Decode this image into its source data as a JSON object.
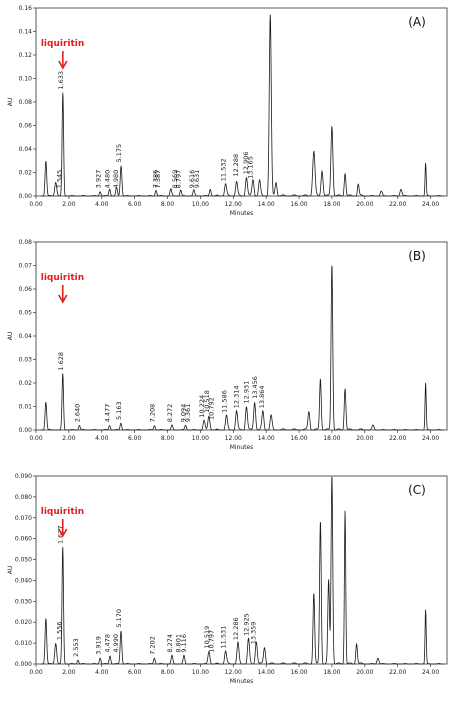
{
  "chart_data": [
    {
      "type": "line",
      "panel_label": "(A)",
      "xlabel": "Minutes",
      "ylabel": "AU",
      "xlim": [
        0,
        25
      ],
      "ylim": [
        0,
        0.16
      ],
      "x_ticks": [
        "0.00",
        "2.00",
        "4.00",
        "6.00",
        "8.00",
        "10.00",
        "12.00",
        "14.00",
        "16.00",
        "18.00",
        "20.00",
        "22.00",
        "24.00"
      ],
      "y_ticks": [
        "0.00",
        "0.02",
        "0.04",
        "0.06",
        "0.08",
        "0.10",
        "0.12",
        "0.14",
        "0.16"
      ],
      "annotation": {
        "text": "liquiritin",
        "x": 1.633
      },
      "series": [
        {
          "peaks": [
            {
              "x": 0.6,
              "y": 0.03,
              "w": 0.05
            },
            {
              "x": 1.2,
              "y": 0.012,
              "w": 0.06
            },
            {
              "x": 1.633,
              "y": 0.088,
              "w": 0.045
            },
            {
              "x": 3.9,
              "y": 0.004,
              "w": 0.05
            },
            {
              "x": 4.48,
              "y": 0.006,
              "w": 0.05
            },
            {
              "x": 4.9,
              "y": 0.007,
              "w": 0.05
            },
            {
              "x": 5.175,
              "y": 0.026,
              "w": 0.05
            },
            {
              "x": 7.3,
              "y": 0.005,
              "w": 0.05
            },
            {
              "x": 8.2,
              "y": 0.006,
              "w": 0.05
            },
            {
              "x": 8.8,
              "y": 0.005,
              "w": 0.05
            },
            {
              "x": 9.6,
              "y": 0.005,
              "w": 0.05
            },
            {
              "x": 10.6,
              "y": 0.006,
              "w": 0.05
            },
            {
              "x": 11.53,
              "y": 0.01,
              "w": 0.06
            },
            {
              "x": 12.2,
              "y": 0.012,
              "w": 0.06
            },
            {
              "x": 12.8,
              "y": 0.016,
              "w": 0.06
            },
            {
              "x": 13.2,
              "y": 0.014,
              "w": 0.06
            },
            {
              "x": 13.6,
              "y": 0.013,
              "w": 0.06
            },
            {
              "x": 14.25,
              "y": 0.154,
              "w": 0.06
            },
            {
              "x": 14.6,
              "y": 0.012,
              "w": 0.06
            },
            {
              "x": 16.9,
              "y": 0.038,
              "w": 0.07
            },
            {
              "x": 17.4,
              "y": 0.022,
              "w": 0.06
            },
            {
              "x": 18.0,
              "y": 0.06,
              "w": 0.06
            },
            {
              "x": 18.8,
              "y": 0.02,
              "w": 0.05
            },
            {
              "x": 19.6,
              "y": 0.01,
              "w": 0.05
            },
            {
              "x": 21.0,
              "y": 0.004,
              "w": 0.06
            },
            {
              "x": 22.2,
              "y": 0.006,
              "w": 0.06
            },
            {
              "x": 23.7,
              "y": 0.028,
              "w": 0.035
            }
          ]
        }
      ],
      "peak_labels": [
        {
          "text": "1.633",
          "x": 1.633,
          "y": 0.088
        },
        {
          "text": "1.545",
          "x": 1.545,
          "y": 0.004
        },
        {
          "text": "3.927",
          "x": 3.927,
          "y": 0.004
        },
        {
          "text": "4.480",
          "x": 4.48,
          "y": 0.004
        },
        {
          "text": "4.980",
          "x": 4.98,
          "y": 0.004
        },
        {
          "text": "5.175",
          "x": 5.175,
          "y": 0.026
        },
        {
          "text": "7.386",
          "x": 7.386,
          "y": 0.004
        },
        {
          "text": "7.387",
          "x": 7.55,
          "y": 0.004
        },
        {
          "text": "8.569",
          "x": 8.569,
          "y": 0.004
        },
        {
          "text": "8.797",
          "x": 8.797,
          "y": 0.004
        },
        {
          "text": "9.616",
          "x": 9.616,
          "y": 0.004
        },
        {
          "text": "9.631",
          "x": 9.9,
          "y": 0.004
        },
        {
          "text": "11.532",
          "x": 11.532,
          "y": 0.01
        },
        {
          "text": "12.288",
          "x": 12.288,
          "y": 0.014
        },
        {
          "text": "12.906",
          "x": 12.906,
          "y": 0.016
        },
        {
          "text": "13.165",
          "x": 13.165,
          "y": 0.012
        }
      ]
    },
    {
      "type": "line",
      "panel_label": "(B)",
      "xlabel": "Minutes",
      "ylabel": "AU",
      "xlim": [
        0,
        25
      ],
      "ylim": [
        0,
        0.08
      ],
      "x_ticks": [
        "0.00",
        "2.00",
        "4.00",
        "6.00",
        "8.00",
        "10.00",
        "12.00",
        "14.00",
        "16.00",
        "18.00",
        "20.00",
        "22.00",
        "24.00"
      ],
      "y_ticks": [
        "0.00",
        "0.01",
        "0.02",
        "0.03",
        "0.04",
        "0.05",
        "0.06",
        "0.07",
        "0.08"
      ],
      "annotation": {
        "text": "liquiritin",
        "x": 1.628
      },
      "series": [
        {
          "peaks": [
            {
              "x": 0.6,
              "y": 0.012,
              "w": 0.05
            },
            {
              "x": 1.628,
              "y": 0.024,
              "w": 0.045
            },
            {
              "x": 2.64,
              "y": 0.002,
              "w": 0.05
            },
            {
              "x": 4.477,
              "y": 0.002,
              "w": 0.05
            },
            {
              "x": 5.163,
              "y": 0.003,
              "w": 0.05
            },
            {
              "x": 7.208,
              "y": 0.002,
              "w": 0.05
            },
            {
              "x": 8.272,
              "y": 0.002,
              "w": 0.05
            },
            {
              "x": 9.1,
              "y": 0.002,
              "w": 0.05
            },
            {
              "x": 10.224,
              "y": 0.004,
              "w": 0.06
            },
            {
              "x": 10.518,
              "y": 0.006,
              "w": 0.06
            },
            {
              "x": 11.586,
              "y": 0.006,
              "w": 0.06
            },
            {
              "x": 12.2,
              "y": 0.008,
              "w": 0.06
            },
            {
              "x": 12.8,
              "y": 0.01,
              "w": 0.06
            },
            {
              "x": 13.3,
              "y": 0.012,
              "w": 0.06
            },
            {
              "x": 13.8,
              "y": 0.008,
              "w": 0.06
            },
            {
              "x": 14.3,
              "y": 0.006,
              "w": 0.06
            },
            {
              "x": 16.6,
              "y": 0.008,
              "w": 0.06
            },
            {
              "x": 17.3,
              "y": 0.022,
              "w": 0.05
            },
            {
              "x": 18.0,
              "y": 0.071,
              "w": 0.05
            },
            {
              "x": 18.8,
              "y": 0.018,
              "w": 0.05
            },
            {
              "x": 20.5,
              "y": 0.002,
              "w": 0.06
            },
            {
              "x": 23.7,
              "y": 0.02,
              "w": 0.035
            }
          ]
        }
      ],
      "peak_labels": [
        {
          "text": "1.628",
          "x": 1.628,
          "y": 0.024
        },
        {
          "text": "2.640",
          "x": 2.64,
          "y": 0.002
        },
        {
          "text": "4.477",
          "x": 4.477,
          "y": 0.002
        },
        {
          "text": "5.163",
          "x": 5.163,
          "y": 0.003
        },
        {
          "text": "7.208",
          "x": 7.208,
          "y": 0.002
        },
        {
          "text": "8.272",
          "x": 8.272,
          "y": 0.002
        },
        {
          "text": "9.094",
          "x": 9.094,
          "y": 0.002
        },
        {
          "text": "9.361",
          "x": 9.361,
          "y": 0.002
        },
        {
          "text": "10.224",
          "x": 10.224,
          "y": 0.004
        },
        {
          "text": "10.518",
          "x": 10.518,
          "y": 0.006
        },
        {
          "text": "10.792",
          "x": 10.792,
          "y": 0.003
        },
        {
          "text": "11.586",
          "x": 11.586,
          "y": 0.006
        },
        {
          "text": "12.314",
          "x": 12.314,
          "y": 0.008
        },
        {
          "text": "12.931",
          "x": 12.931,
          "y": 0.01
        },
        {
          "text": "13.456",
          "x": 13.456,
          "y": 0.012
        },
        {
          "text": "13.864",
          "x": 13.864,
          "y": 0.008
        }
      ]
    },
    {
      "type": "line",
      "panel_label": "(C)",
      "xlabel": "Minutes",
      "ylabel": "AU",
      "xlim": [
        0,
        25
      ],
      "ylim": [
        0,
        0.09
      ],
      "x_ticks": [
        "0.00",
        "2.00",
        "4.00",
        "6.00",
        "8.00",
        "10.00",
        "12.00",
        "14.00",
        "16.00",
        "18.00",
        "20.00",
        "22.00",
        "24.00"
      ],
      "y_ticks": [
        "0.000",
        "0.010",
        "0.020",
        "0.030",
        "0.040",
        "0.050",
        "0.060",
        "0.070",
        "0.080",
        "0.090"
      ],
      "annotation": {
        "text": "liquiritin",
        "x": 1.627
      },
      "series": [
        {
          "peaks": [
            {
              "x": 0.6,
              "y": 0.022,
              "w": 0.05
            },
            {
              "x": 1.2,
              "y": 0.01,
              "w": 0.06
            },
            {
              "x": 1.627,
              "y": 0.056,
              "w": 0.045
            },
            {
              "x": 2.553,
              "y": 0.002,
              "w": 0.05
            },
            {
              "x": 3.9,
              "y": 0.003,
              "w": 0.05
            },
            {
              "x": 4.5,
              "y": 0.004,
              "w": 0.05
            },
            {
              "x": 5.17,
              "y": 0.016,
              "w": 0.05
            },
            {
              "x": 7.202,
              "y": 0.003,
              "w": 0.05
            },
            {
              "x": 8.274,
              "y": 0.004,
              "w": 0.05
            },
            {
              "x": 9.0,
              "y": 0.004,
              "w": 0.05
            },
            {
              "x": 10.519,
              "y": 0.006,
              "w": 0.06
            },
            {
              "x": 11.531,
              "y": 0.006,
              "w": 0.06
            },
            {
              "x": 12.286,
              "y": 0.01,
              "w": 0.06
            },
            {
              "x": 12.925,
              "y": 0.012,
              "w": 0.06
            },
            {
              "x": 13.4,
              "y": 0.011,
              "w": 0.06
            },
            {
              "x": 13.9,
              "y": 0.008,
              "w": 0.06
            },
            {
              "x": 16.9,
              "y": 0.034,
              "w": 0.05
            },
            {
              "x": 17.3,
              "y": 0.069,
              "w": 0.05
            },
            {
              "x": 17.8,
              "y": 0.04,
              "w": 0.05
            },
            {
              "x": 18.0,
              "y": 0.091,
              "w": 0.05
            },
            {
              "x": 18.8,
              "y": 0.074,
              "w": 0.04
            },
            {
              "x": 19.5,
              "y": 0.01,
              "w": 0.05
            },
            {
              "x": 20.8,
              "y": 0.003,
              "w": 0.06
            },
            {
              "x": 23.7,
              "y": 0.026,
              "w": 0.035
            }
          ]
        }
      ],
      "peak_labels": [
        {
          "text": "1.627",
          "x": 1.627,
          "y": 0.056
        },
        {
          "text": "1.556",
          "x": 1.556,
          "y": 0.01
        },
        {
          "text": "2.553",
          "x": 2.553,
          "y": 0.002
        },
        {
          "text": "3.919",
          "x": 3.919,
          "y": 0.003
        },
        {
          "text": "4.478",
          "x": 4.478,
          "y": 0.004
        },
        {
          "text": "4.990",
          "x": 4.99,
          "y": 0.004
        },
        {
          "text": "5.170",
          "x": 5.17,
          "y": 0.016
        },
        {
          "text": "7.202",
          "x": 7.202,
          "y": 0.003
        },
        {
          "text": "8.274",
          "x": 8.274,
          "y": 0.004
        },
        {
          "text": "8.801",
          "x": 8.801,
          "y": 0.004
        },
        {
          "text": "9.116",
          "x": 9.116,
          "y": 0.004
        },
        {
          "text": "10.519",
          "x": 10.519,
          "y": 0.006
        },
        {
          "text": "10.797",
          "x": 10.797,
          "y": 0.004
        },
        {
          "text": "11.531",
          "x": 11.531,
          "y": 0.006
        },
        {
          "text": "12.286",
          "x": 12.286,
          "y": 0.01
        },
        {
          "text": "12.925",
          "x": 12.925,
          "y": 0.012
        },
        {
          "text": "13.359",
          "x": 13.359,
          "y": 0.008
        }
      ]
    }
  ]
}
